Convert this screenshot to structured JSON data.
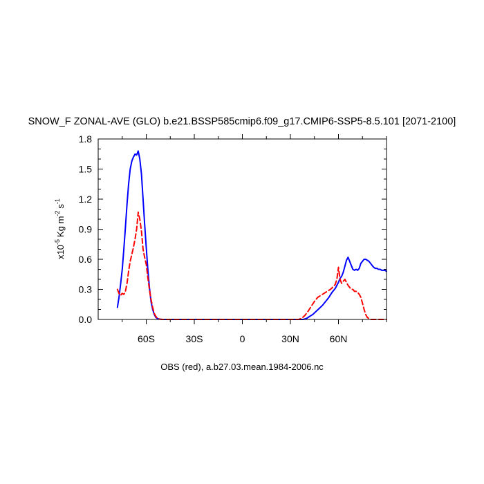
{
  "chart_data": {
    "type": "line",
    "title": "SNOW_F ZONAL-AVE (GLO) b.e21.BSSP585cmip6.f09_g17.CMIP6-SSP5-8.5.101 [2071-2100]",
    "xlabel": "OBS (red), a.b27.03.mean.1984-2006.nc",
    "ylabel_parts": {
      "prefix": "x10",
      "exp1": "-5",
      "mid1": "Kg m",
      "exp2": "-2",
      "mid2": "s",
      "exp3": "-1"
    },
    "xlim": [
      -90,
      90
    ],
    "ylim": [
      0,
      1.8
    ],
    "x_ticks": [
      {
        "value": -60,
        "label": "60S"
      },
      {
        "value": -30,
        "label": "30S"
      },
      {
        "value": 0,
        "label": "0"
      },
      {
        "value": 30,
        "label": "30N"
      },
      {
        "value": 60,
        "label": "60N"
      }
    ],
    "y_ticks": [
      {
        "value": 0.0,
        "label": "0.0"
      },
      {
        "value": 0.3,
        "label": "0.3"
      },
      {
        "value": 0.6,
        "label": "0.6"
      },
      {
        "value": 0.9,
        "label": "0.9"
      },
      {
        "value": 1.2,
        "label": "1.2"
      },
      {
        "value": 1.5,
        "label": "1.5"
      },
      {
        "value": 1.8,
        "label": "1.8"
      }
    ],
    "grid": false,
    "series": [
      {
        "color": "#0000ff",
        "dash": "solid",
        "x": [
          -78,
          -77,
          -76,
          -75,
          -74,
          -73,
          -72,
          -71,
          -70,
          -69,
          -68,
          -67,
          -66,
          -65,
          -64,
          -63,
          -62,
          -61,
          -60,
          -59,
          -58,
          -57,
          -56,
          -55,
          -54,
          -53,
          -52,
          -51,
          -50,
          -48,
          -46,
          -40,
          -30,
          -20,
          -10,
          0,
          10,
          20,
          30,
          33,
          36,
          38,
          40,
          42,
          44,
          46,
          48,
          50,
          52,
          54,
          56,
          58,
          60,
          61,
          62,
          63,
          64,
          65,
          66,
          67,
          68,
          69,
          70,
          71,
          72,
          73,
          74,
          75,
          76,
          77,
          78,
          79,
          80,
          81,
          82,
          83,
          84,
          85,
          86,
          87,
          88,
          89,
          90
        ],
        "values": [
          0.12,
          0.22,
          0.35,
          0.5,
          0.7,
          0.92,
          1.15,
          1.35,
          1.5,
          1.58,
          1.62,
          1.65,
          1.64,
          1.68,
          1.6,
          1.45,
          1.2,
          0.95,
          0.72,
          0.5,
          0.32,
          0.18,
          0.1,
          0.05,
          0.02,
          0.01,
          0.005,
          0.002,
          0.0,
          0.0,
          0.0,
          0.0,
          0.0,
          0.0,
          0.0,
          0.0,
          0.0,
          0.0,
          0.0,
          0.0,
          0.0,
          0.0,
          0.01,
          0.03,
          0.05,
          0.08,
          0.11,
          0.14,
          0.18,
          0.22,
          0.27,
          0.31,
          0.37,
          0.41,
          0.43,
          0.47,
          0.53,
          0.59,
          0.62,
          0.58,
          0.54,
          0.5,
          0.49,
          0.5,
          0.49,
          0.51,
          0.56,
          0.58,
          0.6,
          0.6,
          0.59,
          0.58,
          0.56,
          0.54,
          0.52,
          0.51,
          0.51,
          0.5,
          0.5,
          0.49,
          0.49,
          0.49,
          0.48
        ]
      },
      {
        "color": "#ff0000",
        "dash": "dashed",
        "x": [
          -78,
          -77,
          -76,
          -75,
          -74,
          -73,
          -72,
          -71,
          -70,
          -69,
          -68,
          -67,
          -66,
          -65,
          -64,
          -63,
          -62,
          -61,
          -60,
          -59,
          -58,
          -57,
          -56,
          -55,
          -54,
          -53,
          -52,
          -51,
          -50,
          -48,
          -46,
          -40,
          -30,
          -20,
          -10,
          0,
          10,
          20,
          30,
          33,
          35,
          37,
          39,
          41,
          43,
          45,
          47,
          49,
          51,
          53,
          55,
          57,
          58,
          59,
          60,
          61,
          62,
          63,
          64,
          65,
          66,
          67,
          68,
          69,
          70,
          71,
          72,
          73,
          74,
          75,
          76,
          77,
          78,
          79,
          80,
          81,
          82,
          83,
          84,
          85,
          86,
          87,
          88,
          89,
          90
        ],
        "values": [
          0.3,
          0.26,
          0.24,
          0.26,
          0.25,
          0.28,
          0.36,
          0.48,
          0.58,
          0.65,
          0.72,
          0.8,
          0.9,
          1.07,
          1.0,
          0.88,
          0.7,
          0.62,
          0.55,
          0.42,
          0.3,
          0.2,
          0.12,
          0.06,
          0.03,
          0.01,
          0.005,
          0.002,
          0.0,
          0.0,
          0.0,
          0.0,
          0.0,
          0.0,
          0.0,
          0.0,
          0.0,
          0.0,
          0.0,
          0.0,
          0.0,
          0.01,
          0.04,
          0.08,
          0.13,
          0.18,
          0.22,
          0.24,
          0.26,
          0.28,
          0.3,
          0.33,
          0.35,
          0.4,
          0.52,
          0.4,
          0.36,
          0.38,
          0.4,
          0.37,
          0.34,
          0.32,
          0.3,
          0.3,
          0.28,
          0.28,
          0.27,
          0.25,
          0.22,
          0.16,
          0.1,
          0.05,
          0.02,
          0.01,
          0.0,
          0.0,
          0.0,
          0.0,
          0.0,
          0.0,
          0.0,
          0.0,
          0.0,
          0.0,
          0.0
        ]
      }
    ]
  }
}
